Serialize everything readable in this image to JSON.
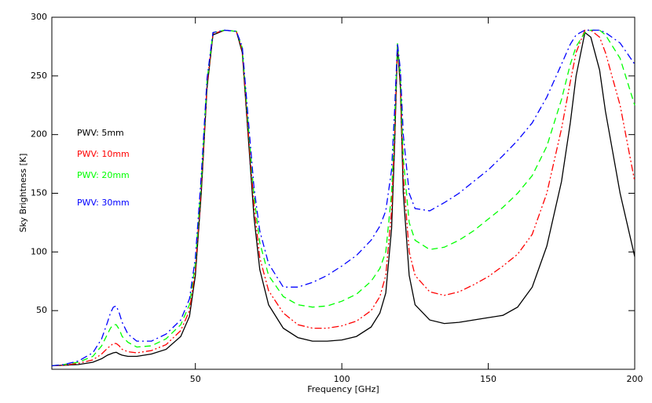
{
  "chart_data": {
    "type": "line",
    "x_label": "Frequency [GHz]",
    "y_label": "Sky Brightness [K]",
    "x": [
      1,
      5,
      10,
      15,
      18,
      20,
      21,
      22,
      23,
      24,
      25,
      27,
      30,
      35,
      40,
      45,
      48,
      50,
      52,
      54,
      56,
      60,
      64,
      66,
      68,
      70,
      72,
      75,
      80,
      85,
      90,
      95,
      100,
      105,
      110,
      113,
      115,
      117,
      118,
      119,
      120,
      121,
      123,
      125,
      130,
      135,
      140,
      145,
      150,
      155,
      160,
      165,
      170,
      175,
      178,
      180,
      183,
      185,
      188,
      190,
      195,
      200
    ],
    "series": [
      {
        "name": "PWV: 5mm",
        "color": "#000000",
        "dash": "solid",
        "values": [
          3,
          3.5,
          4,
          6,
          9,
          12,
          13,
          14,
          14.5,
          13,
          12,
          11,
          11,
          13,
          17,
          28,
          45,
          80,
          150,
          240,
          285,
          289,
          288,
          270,
          200,
          130,
          85,
          55,
          35,
          27,
          24,
          24,
          25,
          28,
          36,
          48,
          65,
          120,
          190,
          275,
          240,
          150,
          80,
          55,
          42,
          39,
          40,
          42,
          44,
          46,
          53,
          70,
          105,
          160,
          210,
          250,
          287,
          283,
          255,
          220,
          150,
          96
        ]
      },
      {
        "name": "PWV: 10mm",
        "color": "#ff0000",
        "dash": "dash-dot-dot",
        "values": [
          3,
          3.5,
          5,
          8,
          13,
          18,
          20,
          22,
          22,
          20,
          17,
          15,
          14,
          16,
          21,
          33,
          50,
          85,
          155,
          243,
          286,
          289,
          288,
          272,
          205,
          140,
          95,
          67,
          48,
          38,
          35,
          35,
          37,
          41,
          50,
          62,
          80,
          135,
          200,
          277,
          245,
          165,
          100,
          80,
          66,
          63,
          66,
          72,
          79,
          88,
          98,
          115,
          150,
          205,
          245,
          270,
          289,
          289,
          283,
          270,
          225,
          160
        ]
      },
      {
        "name": "PWV: 20mm",
        "color": "#00ff00",
        "dash": "dashed",
        "values": [
          3,
          4,
          6,
          11,
          20,
          30,
          35,
          38,
          38,
          34,
          28,
          23,
          19,
          20,
          26,
          38,
          55,
          90,
          160,
          246,
          287,
          289,
          288,
          274,
          210,
          148,
          108,
          80,
          62,
          55,
          53,
          54,
          58,
          64,
          75,
          86,
          100,
          150,
          210,
          278,
          250,
          180,
          125,
          110,
          102,
          104,
          110,
          118,
          128,
          138,
          150,
          165,
          190,
          230,
          260,
          275,
          287,
          289,
          289,
          285,
          265,
          225
        ]
      },
      {
        "name": "PWV: 30mm",
        "color": "#0000ff",
        "dash": "dash-dot",
        "values": [
          3,
          4,
          7,
          14,
          26,
          40,
          48,
          53,
          54,
          48,
          40,
          30,
          24,
          24,
          30,
          42,
          60,
          95,
          165,
          248,
          287,
          289,
          288,
          275,
          215,
          155,
          118,
          90,
          70,
          70,
          74,
          80,
          88,
          97,
          110,
          122,
          135,
          170,
          220,
          278,
          255,
          200,
          150,
          137,
          135,
          142,
          150,
          160,
          170,
          182,
          195,
          210,
          232,
          260,
          277,
          285,
          289,
          289,
          289,
          287,
          278,
          260
        ]
      }
    ],
    "xlim": [
      1,
      200
    ],
    "xticks": [
      50,
      100,
      150,
      200
    ],
    "ylim": [
      0,
      300
    ],
    "yticks": [
      50,
      100,
      150,
      200,
      250,
      300
    ]
  }
}
